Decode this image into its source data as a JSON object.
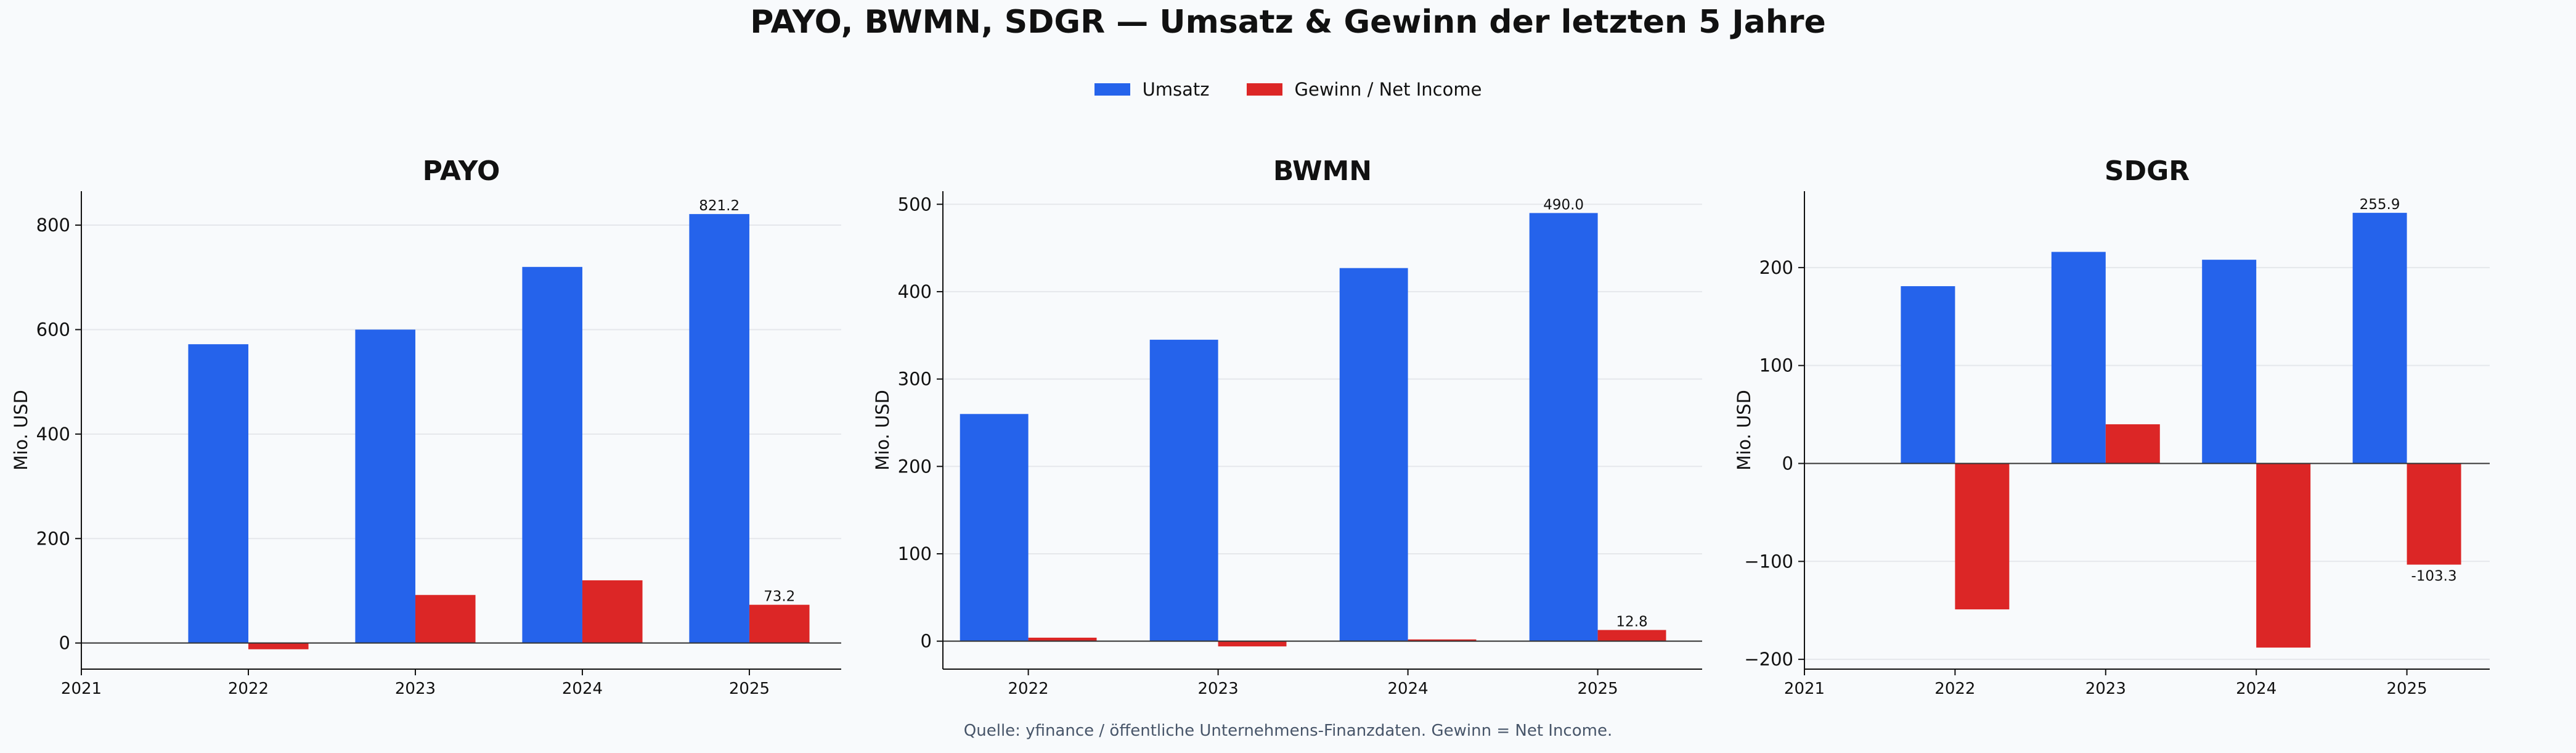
{
  "title": "PAYO, BWMN, SDGR — Umsatz & Gewinn der letzten 5 Jahre",
  "footer": "Quelle: yfinance / öffentliche Unternehmens-Finanzdaten. Gewinn = Net Income.",
  "legend": {
    "placement": "top-center",
    "items": [
      {
        "label": "Umsatz",
        "color": "#2563eb"
      },
      {
        "label": "Gewinn / Net Income",
        "color": "#dc2626"
      }
    ]
  },
  "colors": {
    "revenue": "#2563eb",
    "profit": "#dc2626",
    "grid": "#e5e7eb",
    "axis": "#111111"
  },
  "chart_data": [
    {
      "type": "bar",
      "title": "PAYO",
      "ylabel": "Mio. USD",
      "x_ticks": [
        "2021",
        "2022",
        "2023",
        "2024",
        "2025"
      ],
      "categories": [
        "2022",
        "2023",
        "2024",
        "2025"
      ],
      "ylim": [
        -50,
        865
      ],
      "y_ticks": [
        0,
        200,
        400,
        600,
        800
      ],
      "grid": true,
      "series": [
        {
          "name": "Umsatz",
          "values": [
            572,
            600,
            720,
            821.2
          ]
        },
        {
          "name": "Gewinn / Net Income",
          "values": [
            -12,
            92,
            120,
            73.2
          ]
        }
      ],
      "data_labels": [
        {
          "series": "Umsatz",
          "category": "2025",
          "text": "821.2"
        },
        {
          "series": "Gewinn / Net Income",
          "category": "2025",
          "text": "73.2"
        }
      ]
    },
    {
      "type": "bar",
      "title": "BWMN",
      "ylabel": "Mio. USD",
      "x_ticks": [
        "2022",
        "2023",
        "2024",
        "2025"
      ],
      "categories": [
        "2022",
        "2023",
        "2024",
        "2025"
      ],
      "ylim": [
        -32,
        515
      ],
      "y_ticks": [
        0,
        100,
        200,
        300,
        400,
        500
      ],
      "grid": true,
      "series": [
        {
          "name": "Umsatz",
          "values": [
            260,
            345,
            427,
            490.0
          ]
        },
        {
          "name": "Gewinn / Net Income",
          "values": [
            4,
            -6,
            2,
            12.8
          ]
        }
      ],
      "data_labels": [
        {
          "series": "Umsatz",
          "category": "2025",
          "text": "490.0"
        },
        {
          "series": "Gewinn / Net Income",
          "category": "2025",
          "text": "12.8"
        }
      ]
    },
    {
      "type": "bar",
      "title": "SDGR",
      "ylabel": "Mio. USD",
      "x_ticks": [
        "2021",
        "2022",
        "2023",
        "2024",
        "2025"
      ],
      "categories": [
        "2022",
        "2023",
        "2024",
        "2025"
      ],
      "ylim": [
        -210,
        278
      ],
      "y_ticks": [
        -200,
        -100,
        0,
        100,
        200
      ],
      "grid": true,
      "series": [
        {
          "name": "Umsatz",
          "values": [
            181,
            216,
            208,
            255.9
          ]
        },
        {
          "name": "Gewinn / Net Income",
          "values": [
            -149,
            40,
            -188,
            -103.3
          ]
        }
      ],
      "data_labels": [
        {
          "series": "Umsatz",
          "category": "2025",
          "text": "255.9"
        },
        {
          "series": "Gewinn / Net Income",
          "category": "2025",
          "text": "-103.3"
        }
      ]
    }
  ]
}
